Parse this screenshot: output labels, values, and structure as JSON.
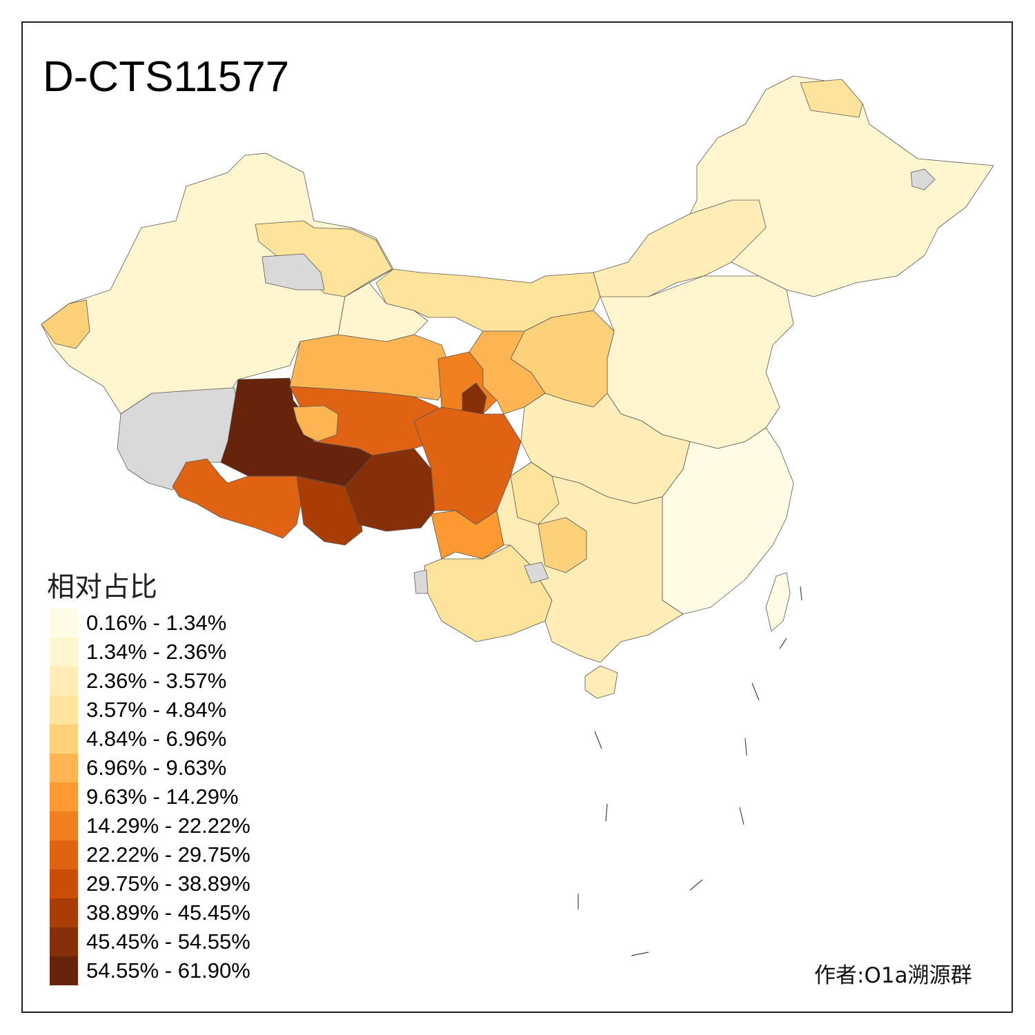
{
  "title": "D-CTS11577",
  "legend": {
    "title": "相对占比",
    "classes": [
      {
        "label": "0.16% - 1.34%",
        "color": "#fffbe4"
      },
      {
        "label": "1.34% - 2.36%",
        "color": "#fff6cf"
      },
      {
        "label": "2.36% - 3.57%",
        "color": "#feedb6"
      },
      {
        "label": "3.57% - 4.84%",
        "color": "#fee39b"
      },
      {
        "label": "4.84% - 6.96%",
        "color": "#fdd07a"
      },
      {
        "label": "6.96% - 9.63%",
        "color": "#fdb553"
      },
      {
        "label": "9.63% - 14.29%",
        "color": "#fc9a31"
      },
      {
        "label": "14.29% - 22.22%",
        "color": "#f07f1e"
      },
      {
        "label": "22.22% - 29.75%",
        "color": "#e06313"
      },
      {
        "label": "29.75% - 38.89%",
        "color": "#cc4d07"
      },
      {
        "label": "38.89% - 45.45%",
        "color": "#a83d05"
      },
      {
        "label": "45.45% - 54.55%",
        "color": "#86300a"
      },
      {
        "label": "54.55% - 61.90%",
        "color": "#68240a"
      }
    ]
  },
  "no_data_color": "#d9d9d9",
  "credit": "作者:O1a溯源群"
}
